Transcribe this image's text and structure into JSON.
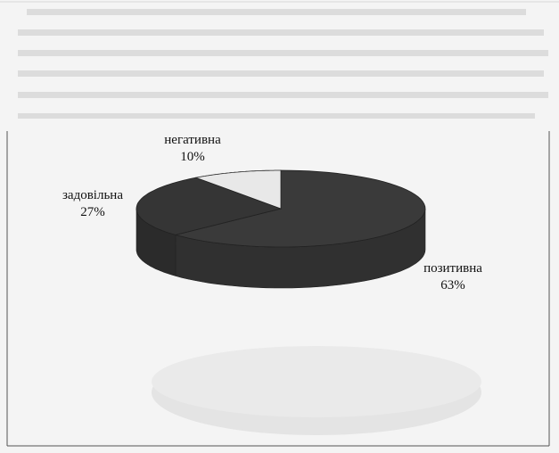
{
  "chart_data": {
    "type": "pie",
    "labels": [
      "позитивна",
      "задовільна",
      "негативна"
    ],
    "values": [
      63,
      27,
      10
    ],
    "value_labels": [
      "63%",
      "27%",
      "10%"
    ],
    "colors": {
      "позитивна": "#3a3a3a",
      "задовільна": "#353535",
      "негативна": "#e8e8e8"
    },
    "style": "3d",
    "legend": "none",
    "title": ""
  }
}
